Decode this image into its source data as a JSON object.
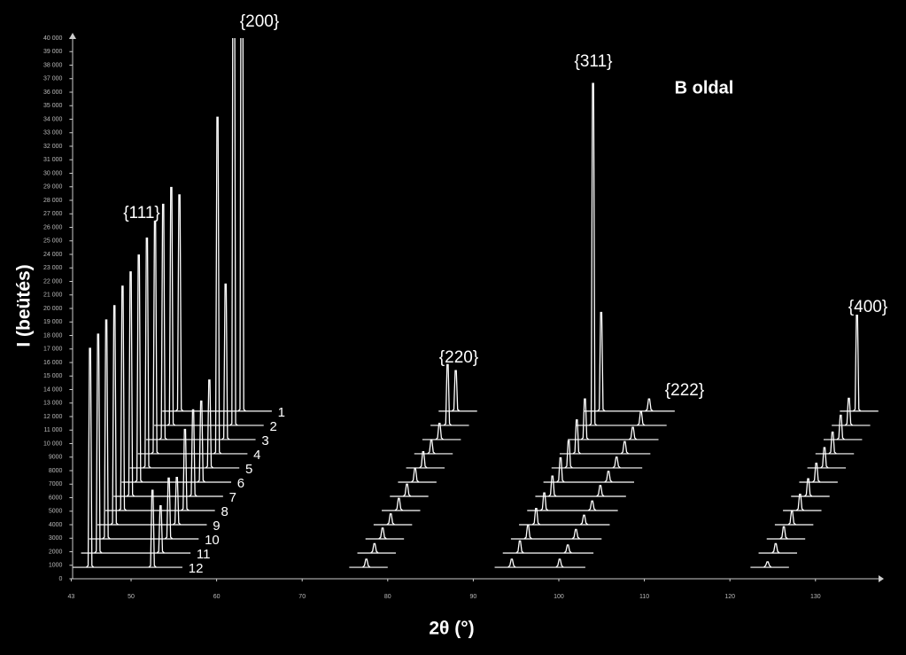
{
  "chart_data": {
    "type": "waterfall",
    "annotation": "B oldal",
    "x_label": "2θ (°)",
    "y_label": "I (beütés)",
    "color": "#ffffff",
    "categories": [
      "{111}",
      "{200}",
      "{220}",
      "{311}",
      "{222}",
      "{400}"
    ],
    "x": [
      45.2,
      52.5,
      77.5,
      94.5,
      100.1,
      124.4
    ],
    "series": [
      {
        "name": "1",
        "values": [
          16000,
          45000,
          3000,
          7300,
          900,
          7100
        ]
      },
      {
        "name": "2",
        "values": [
          17600,
          45000,
          4500,
          25300,
          1000,
          2000
        ]
      },
      {
        "name": "3",
        "values": [
          17400,
          11500,
          1200,
          3000,
          900,
          1800
        ]
      },
      {
        "name": "4",
        "values": [
          17200,
          24900,
          1000,
          2500,
          900,
          1600
        ]
      },
      {
        "name": "5",
        "values": [
          17000,
          6500,
          1200,
          2000,
          800,
          1500
        ]
      },
      {
        "name": "6",
        "values": [
          16800,
          6000,
          1000,
          1800,
          800,
          1400
        ]
      },
      {
        "name": "7",
        "values": [
          16600,
          6400,
          900,
          1500,
          800,
          1300
        ]
      },
      {
        "name": "8",
        "values": [
          16600,
          6000,
          900,
          1300,
          700,
          1200
        ]
      },
      {
        "name": "9",
        "values": [
          16200,
          3500,
          800,
          1200,
          700,
          1000
        ]
      },
      {
        "name": "10",
        "values": [
          16200,
          4500,
          800,
          1000,
          700,
          900
        ]
      },
      {
        "name": "11",
        "values": [
          16200,
          3500,
          700,
          900,
          600,
          700
        ]
      },
      {
        "name": "12",
        "values": [
          16200,
          5700,
          600,
          600,
          600,
          400
        ]
      }
    ],
    "xlim": [
      43,
      137
    ],
    "xticks": [
      43,
      50,
      60,
      70,
      80,
      90,
      100,
      110,
      120,
      130
    ],
    "ylim": [
      0,
      40000
    ],
    "yticks": [
      0,
      1000,
      2000,
      3000,
      4000,
      5000,
      6000,
      7000,
      8000,
      9000,
      {
        "value": 10000,
        "label": "10 000"
      },
      {
        "value": 11000,
        "label": "11 000"
      },
      {
        "value": 12000,
        "label": "12 000"
      },
      {
        "value": 13000,
        "label": "13 000"
      },
      {
        "value": 14000,
        "label": "14 000"
      },
      {
        "value": 15000,
        "label": "15 000"
      },
      {
        "value": 16000,
        "label": "16 000"
      },
      {
        "value": 17000,
        "label": "17 000"
      },
      {
        "value": 18000,
        "label": "18 000"
      },
      {
        "value": 19000,
        "label": "19 000"
      },
      {
        "value": 20000,
        "label": "20 000"
      },
      {
        "value": 21000,
        "label": "21 000"
      },
      {
        "value": 22000,
        "label": "22 000"
      },
      {
        "value": 23000,
        "label": "23 000"
      },
      {
        "value": 24000,
        "label": "24 000"
      },
      {
        "value": 25000,
        "label": "25 000"
      },
      {
        "value": 26000,
        "label": "26 000"
      },
      {
        "value": 27000,
        "label": "27 000"
      },
      {
        "value": 28000,
        "label": "28 000"
      },
      {
        "value": 29000,
        "label": "29 000"
      },
      {
        "value": 30000,
        "label": "30 000"
      },
      {
        "value": 31000,
        "label": "31 000"
      },
      {
        "value": 32000,
        "label": "32 000"
      },
      {
        "value": 33000,
        "label": "33 000"
      },
      {
        "value": 34000,
        "label": "34 000"
      },
      {
        "value": 35000,
        "label": "35 000"
      },
      {
        "value": 36000,
        "label": "36 000"
      },
      {
        "value": 37000,
        "label": "37 000"
      },
      {
        "value": 38000,
        "label": "38 000"
      },
      {
        "value": 39000,
        "label": "39 000"
      },
      {
        "value": 40000,
        "label": "40 000"
      }
    ]
  }
}
